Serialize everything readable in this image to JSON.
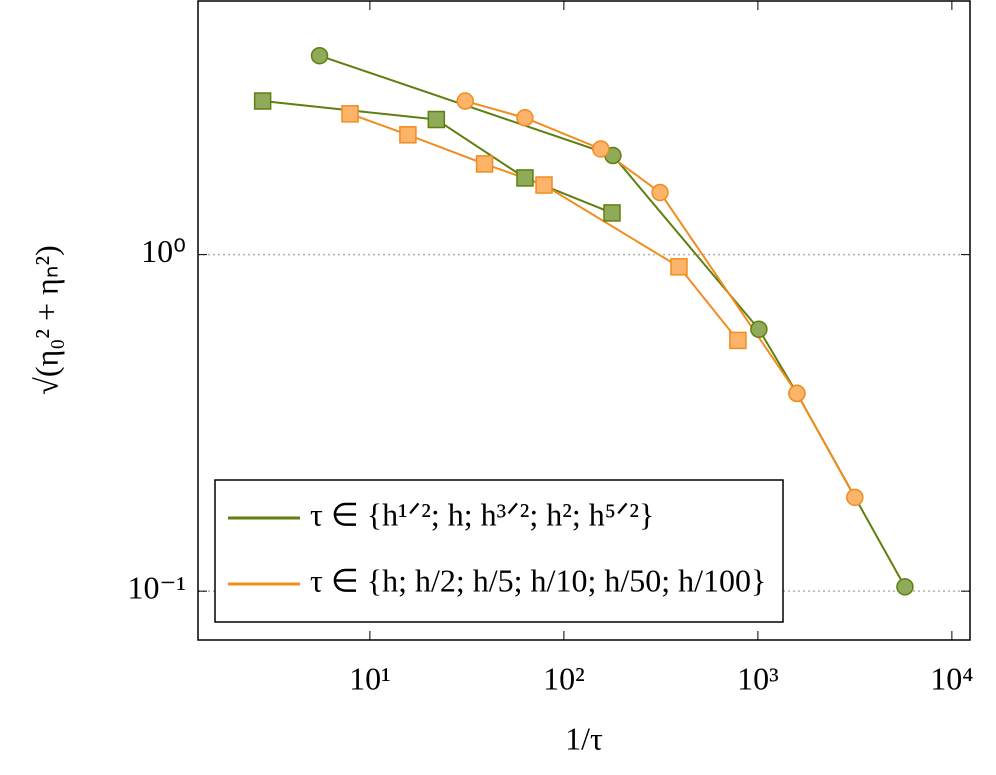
{
  "chart_data": {
    "type": "line",
    "xlabel": "1/τ",
    "ylabel": "√(η₀² + ηₙ²)",
    "xlog": true,
    "ylog": true,
    "xlim": [
      1.3,
      12400
    ],
    "ylim": [
      0.0716,
      5.67
    ],
    "xticks": [
      {
        "value": 10,
        "label": "10¹"
      },
      {
        "value": 100,
        "label": "10²"
      },
      {
        "value": 1000,
        "label": "10³"
      },
      {
        "value": 10000,
        "label": "10⁴"
      }
    ],
    "yticks": [
      {
        "value": 0.1,
        "label": "10⁻¹"
      },
      {
        "value": 1,
        "label": "10⁰"
      }
    ],
    "grid": "y",
    "legend": "lower left",
    "series": [
      {
        "name": "τ ∈ {h¹ᐟ²; h; h³ᐟ²; h²; h⁵ᐟ²}",
        "color": "#5f7f10",
        "fill": "#8fab5a",
        "marker": "circle",
        "x": [
          5.5,
          179,
          1012,
          1590,
          5730
        ],
        "values": [
          3.9,
          1.97,
          0.6,
          0.387,
          0.103
        ]
      },
      {
        "color": "#5f7f10",
        "fill": "#8fab5a",
        "marker": "square",
        "x": [
          2.8,
          22,
          63,
          177
        ],
        "values": [
          2.86,
          2.52,
          1.69,
          1.33
        ]
      },
      {
        "name": "τ ∈ {h; h/2; h/5; h/10; h/50; h/100}",
        "color": "#f28c1e",
        "fill": "#fbb46a",
        "marker": "square",
        "x": [
          7.9,
          15.7,
          39,
          79,
          392,
          789
        ],
        "values": [
          2.62,
          2.27,
          1.86,
          1.61,
          0.92,
          0.556
        ]
      },
      {
        "color": "#f28c1e",
        "fill": "#fbb46a",
        "marker": "circle",
        "x": [
          31,
          63,
          155,
          313,
          1590,
          3160
        ],
        "values": [
          2.86,
          2.55,
          2.06,
          1.53,
          0.387,
          0.19
        ]
      }
    ]
  }
}
